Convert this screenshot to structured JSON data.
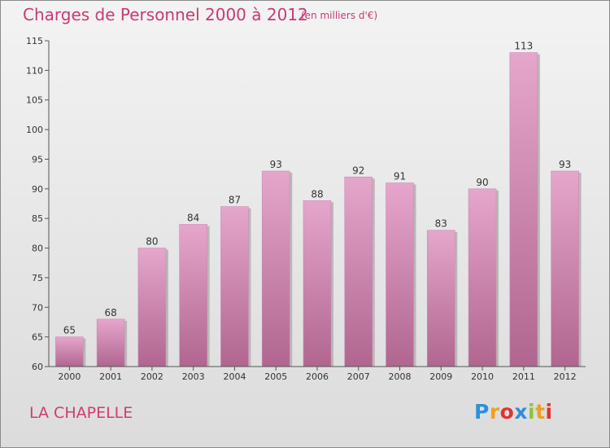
{
  "title": "Charges de Personnel 2000 à 2012",
  "subtitle": "(en milliers d'€)",
  "commune": "LA CHAPELLE",
  "logo": {
    "text": "Proxiti",
    "letter_colors": [
      "#2e8fd8",
      "#f0a020",
      "#e0342e",
      "#2e8fd8",
      "#8cc43c",
      "#f0a020",
      "#e0342e"
    ]
  },
  "colors": {
    "title": "#c63a78",
    "bar_top": "#e6a6cc",
    "bar_bottom": "#b0668f",
    "axis": "#555555"
  },
  "chart_data": {
    "type": "bar",
    "title": "Charges de Personnel 2000 à 2012",
    "subtitle": "(en milliers d'€)",
    "xlabel": "",
    "ylabel": "",
    "categories": [
      "2000",
      "2001",
      "2002",
      "2003",
      "2004",
      "2005",
      "2006",
      "2007",
      "2008",
      "2009",
      "2010",
      "2011",
      "2012"
    ],
    "values": [
      65,
      68,
      80,
      84,
      87,
      93,
      88,
      92,
      91,
      83,
      90,
      113,
      93
    ],
    "ylim": [
      60,
      115
    ],
    "yticks": [
      60,
      65,
      70,
      75,
      80,
      85,
      90,
      95,
      100,
      105,
      110,
      115
    ],
    "grid": false,
    "legend": "none"
  }
}
